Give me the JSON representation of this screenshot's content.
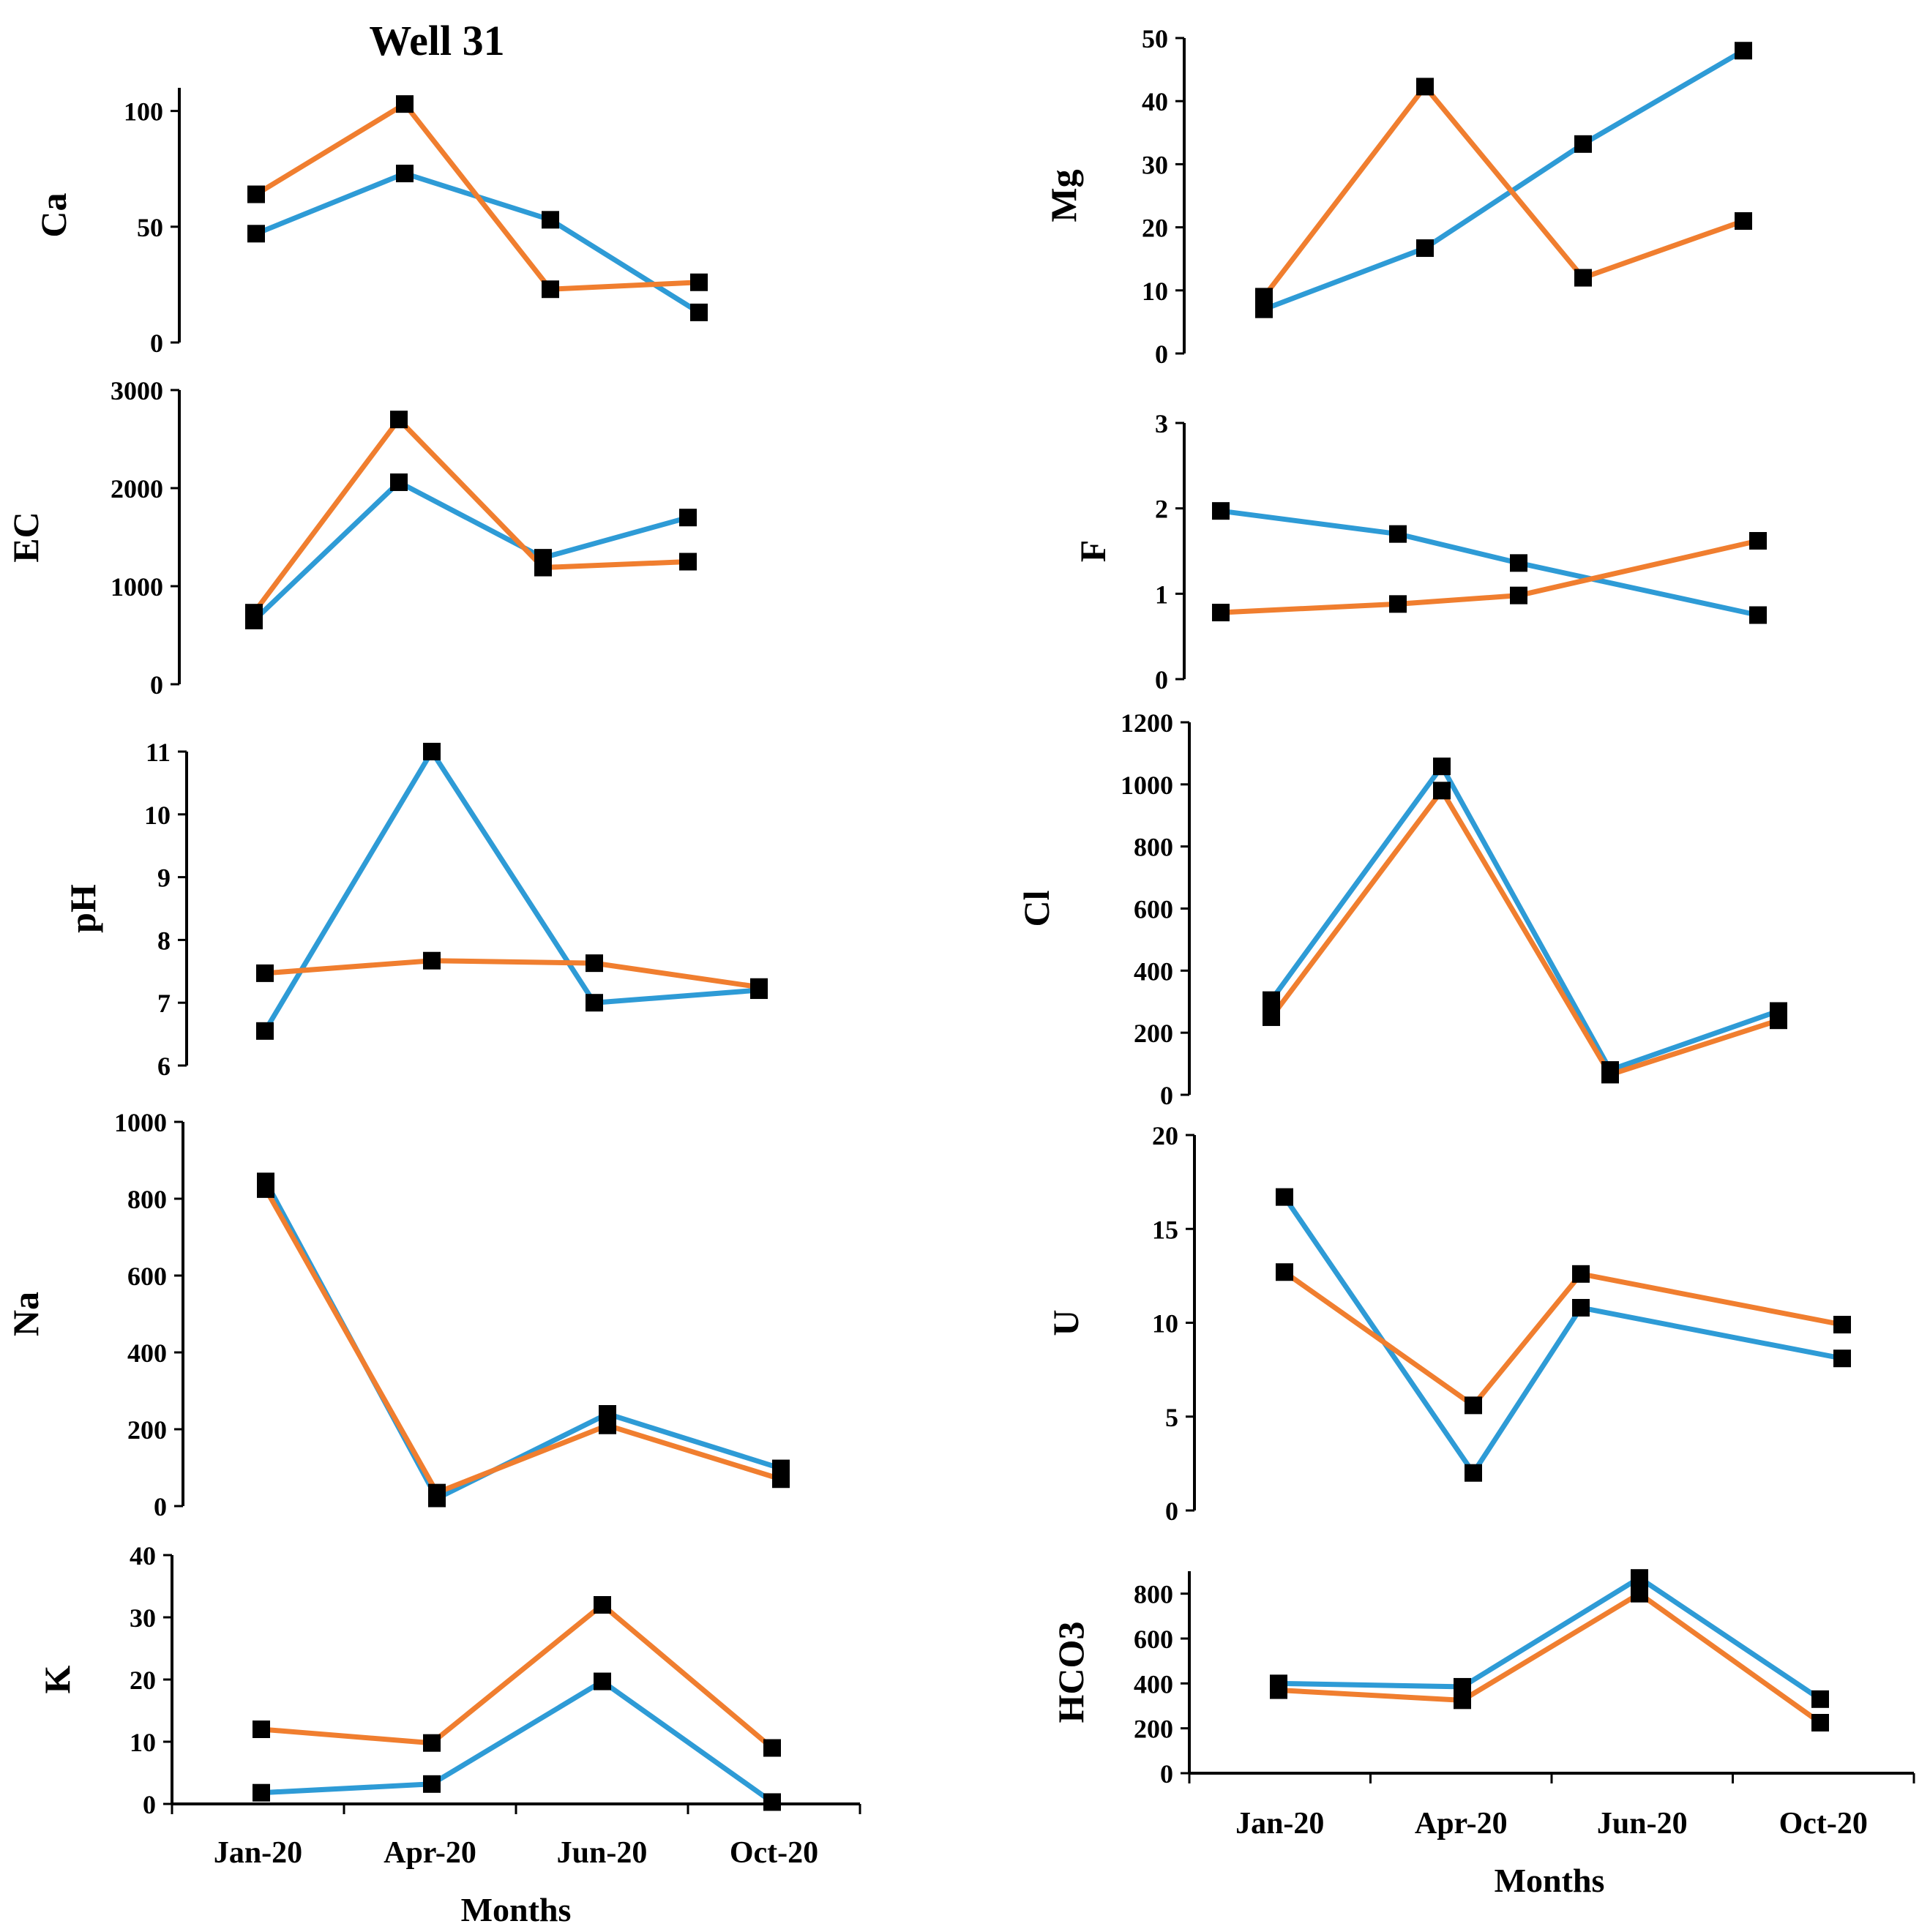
{
  "figure_title": "Well 31",
  "colors": {
    "series_1": "#2E9BD6",
    "series_2": "#F07E2F",
    "marker": "#000000"
  },
  "chart_data": [
    {
      "type": "line",
      "ylabel": "Ca",
      "categories": [
        "Jan-20",
        "Apr-20",
        "Jun-20",
        "Oct-20"
      ],
      "ylim": [
        0,
        110
      ],
      "yticks": [
        0,
        50,
        100
      ],
      "series": [
        {
          "name": "series_1",
          "values": [
            47,
            73,
            53,
            13
          ]
        },
        {
          "name": "series_2",
          "values": [
            64,
            103,
            23,
            26
          ]
        }
      ]
    },
    {
      "type": "line",
      "ylabel": "EC",
      "categories": [
        "Jan-20",
        "Apr-20",
        "Jun-20",
        "Oct-20"
      ],
      "ylim": [
        0,
        3000
      ],
      "yticks": [
        0,
        1000,
        2000,
        3000
      ],
      "series": [
        {
          "name": "series_1",
          "values": [
            650,
            2060,
            1290,
            1700
          ]
        },
        {
          "name": "series_2",
          "values": [
            730,
            2700,
            1190,
            1250
          ]
        }
      ]
    },
    {
      "type": "line",
      "ylabel": "pH",
      "categories": [
        "Jan-20",
        "Apr-20",
        "Jun-20",
        "Oct-20"
      ],
      "ylim": [
        6,
        11
      ],
      "yticks": [
        6,
        7,
        8,
        9,
        10,
        11
      ],
      "series": [
        {
          "name": "series_1",
          "values": [
            6.55,
            11.0,
            7.0,
            7.2
          ]
        },
        {
          "name": "series_2",
          "values": [
            7.47,
            7.67,
            7.63,
            7.25
          ]
        }
      ]
    },
    {
      "type": "line",
      "ylabel": "Na",
      "categories": [
        "Jan-20",
        "Apr-20",
        "Jun-20",
        "Oct-20"
      ],
      "ylim": [
        0,
        1000
      ],
      "yticks": [
        0,
        200,
        400,
        600,
        800,
        1000
      ],
      "series": [
        {
          "name": "series_1",
          "values": [
            845,
            20,
            240,
            98
          ]
        },
        {
          "name": "series_2",
          "values": [
            825,
            35,
            210,
            70
          ]
        }
      ]
    },
    {
      "type": "line",
      "ylabel": "K",
      "xlabel": "Months",
      "categories": [
        "Jan-20",
        "Apr-20",
        "Jun-20",
        "Oct-20"
      ],
      "ylim": [
        0,
        40
      ],
      "yticks": [
        0,
        10,
        20,
        30,
        40
      ],
      "series": [
        {
          "name": "series_1",
          "values": [
            1.8,
            3.2,
            19.7,
            0.3
          ]
        },
        {
          "name": "series_2",
          "values": [
            12,
            9.8,
            32,
            9
          ]
        }
      ]
    },
    {
      "type": "line",
      "ylabel": "Mg",
      "categories": [
        "Jan-20",
        "Apr-20",
        "Jun-20",
        "Oct-20"
      ],
      "ylim": [
        0,
        50
      ],
      "yticks": [
        0,
        10,
        20,
        30,
        40,
        50
      ],
      "series": [
        {
          "name": "series_1",
          "values": [
            7,
            16.7,
            33.2,
            48
          ]
        },
        {
          "name": "series_2",
          "values": [
            9,
            42.3,
            12,
            21
          ]
        }
      ]
    },
    {
      "type": "line",
      "ylabel": "F",
      "categories": [
        "Jan-20",
        "Apr-20",
        "Jun-20",
        "Oct-20"
      ],
      "ylim": [
        0,
        3
      ],
      "yticks": [
        0,
        1,
        2,
        3
      ],
      "series": [
        {
          "name": "series_1",
          "values": [
            1.97,
            1.7,
            1.36,
            0.75
          ]
        },
        {
          "name": "series_2",
          "values": [
            0.78,
            0.88,
            0.98,
            1.62
          ]
        }
      ]
    },
    {
      "type": "line",
      "ylabel": "Cl",
      "categories": [
        "Jan-20",
        "Apr-20",
        "Jun-20",
        "Oct-20"
      ],
      "ylim": [
        0,
        1200
      ],
      "yticks": [
        0,
        200,
        400,
        600,
        800,
        1000,
        1200
      ],
      "series": [
        {
          "name": "series_1",
          "values": [
            305,
            1058,
            80,
            270
          ]
        },
        {
          "name": "series_2",
          "values": [
            250,
            980,
            65,
            240
          ]
        }
      ]
    },
    {
      "type": "line",
      "ylabel": "U",
      "categories": [
        "Jan-20",
        "Apr-20",
        "Jun-20",
        "Oct-20"
      ],
      "ylim": [
        0,
        20
      ],
      "yticks": [
        0,
        5,
        10,
        15,
        20
      ],
      "series": [
        {
          "name": "series_1",
          "values": [
            16.7,
            2.0,
            10.8,
            8.1
          ]
        },
        {
          "name": "series_2",
          "values": [
            12.7,
            5.6,
            12.6,
            9.9
          ]
        }
      ]
    },
    {
      "type": "line",
      "ylabel": "HCO3",
      "xlabel": "Months",
      "categories": [
        "Jan-20",
        "Apr-20",
        "Jun-20",
        "Oct-20"
      ],
      "ylim": [
        0,
        900
      ],
      "yticks": [
        0,
        200,
        400,
        600,
        800
      ],
      "series": [
        {
          "name": "series_1",
          "values": [
            400,
            385,
            870,
            330
          ]
        },
        {
          "name": "series_2",
          "values": [
            370,
            325,
            800,
            225
          ]
        }
      ]
    }
  ]
}
